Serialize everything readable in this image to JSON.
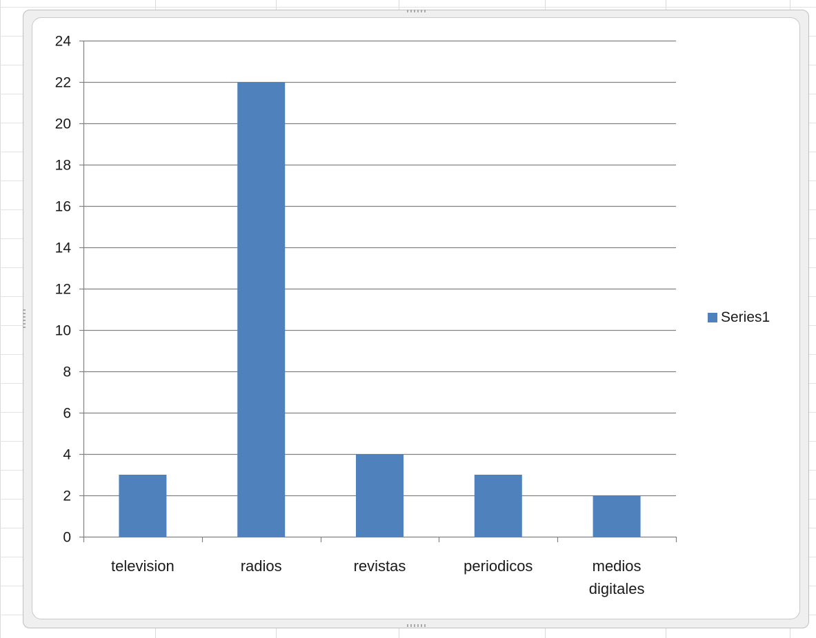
{
  "chart_data": {
    "type": "bar",
    "categories": [
      "television",
      "radios",
      "revistas",
      "periodicos",
      "medios digitales"
    ],
    "category_lines": [
      [
        "television"
      ],
      [
        "radios"
      ],
      [
        "revistas"
      ],
      [
        "periodicos"
      ],
      [
        "medios",
        "digitales"
      ]
    ],
    "series": [
      {
        "name": "Series1",
        "values": [
          3,
          22,
          4,
          3,
          2
        ],
        "color": "#4f81bd"
      }
    ],
    "title": "",
    "xlabel": "",
    "ylabel": "",
    "ylim": [
      0,
      24
    ],
    "yticks": [
      0,
      2,
      4,
      6,
      8,
      10,
      12,
      14,
      16,
      18,
      20,
      22,
      24
    ],
    "grid": true,
    "legend": {
      "position": "right",
      "label": "Series1"
    },
    "colors": {
      "bar": "#4f81bd",
      "gridline": "#808080",
      "axis": "#808080"
    }
  }
}
